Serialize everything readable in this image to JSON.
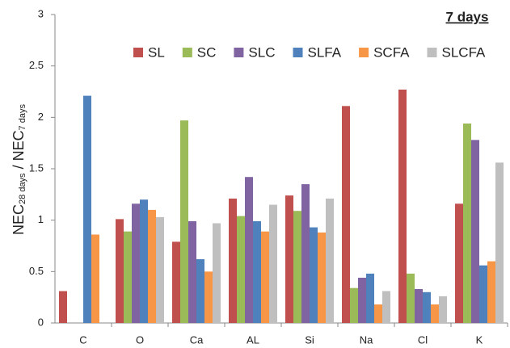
{
  "chart_data": {
    "type": "bar",
    "annotation": "7 days",
    "ylabel": {
      "main": "NEC",
      "sub": "28 days",
      "sep": " / NEC",
      "sub2": "7 days"
    },
    "categories": [
      "C",
      "O",
      "Ca",
      "AL",
      "Si",
      "Na",
      "Cl",
      "K"
    ],
    "series": [
      {
        "name": "SL",
        "color": "#c0504d",
        "values": [
          0.31,
          1.01,
          0.79,
          1.21,
          1.24,
          2.11,
          2.27,
          1.16
        ]
      },
      {
        "name": "SC",
        "color": "#9bbb59",
        "values": [
          null,
          0.89,
          1.97,
          1.04,
          1.09,
          0.34,
          0.48,
          1.94
        ]
      },
      {
        "name": "SLC",
        "color": "#8064a2",
        "values": [
          null,
          1.16,
          0.99,
          1.42,
          1.35,
          0.44,
          0.33,
          1.78
        ]
      },
      {
        "name": "SLFA",
        "color": "#4f81bd",
        "values": [
          2.21,
          1.2,
          0.62,
          0.99,
          0.93,
          0.48,
          0.3,
          0.56
        ]
      },
      {
        "name": "SCFA",
        "color": "#f79646",
        "values": [
          0.86,
          1.1,
          0.5,
          0.89,
          0.88,
          0.18,
          0.18,
          0.6
        ]
      },
      {
        "name": "SLCFA",
        "color": "#bfbfbf",
        "values": [
          null,
          1.03,
          0.97,
          1.15,
          1.21,
          0.31,
          0.26,
          1.56
        ]
      }
    ],
    "ylim": [
      0,
      3
    ],
    "yticks": [
      0,
      0.5,
      1,
      1.5,
      2,
      2.5,
      3
    ],
    "grid": false,
    "legend": "top"
  }
}
